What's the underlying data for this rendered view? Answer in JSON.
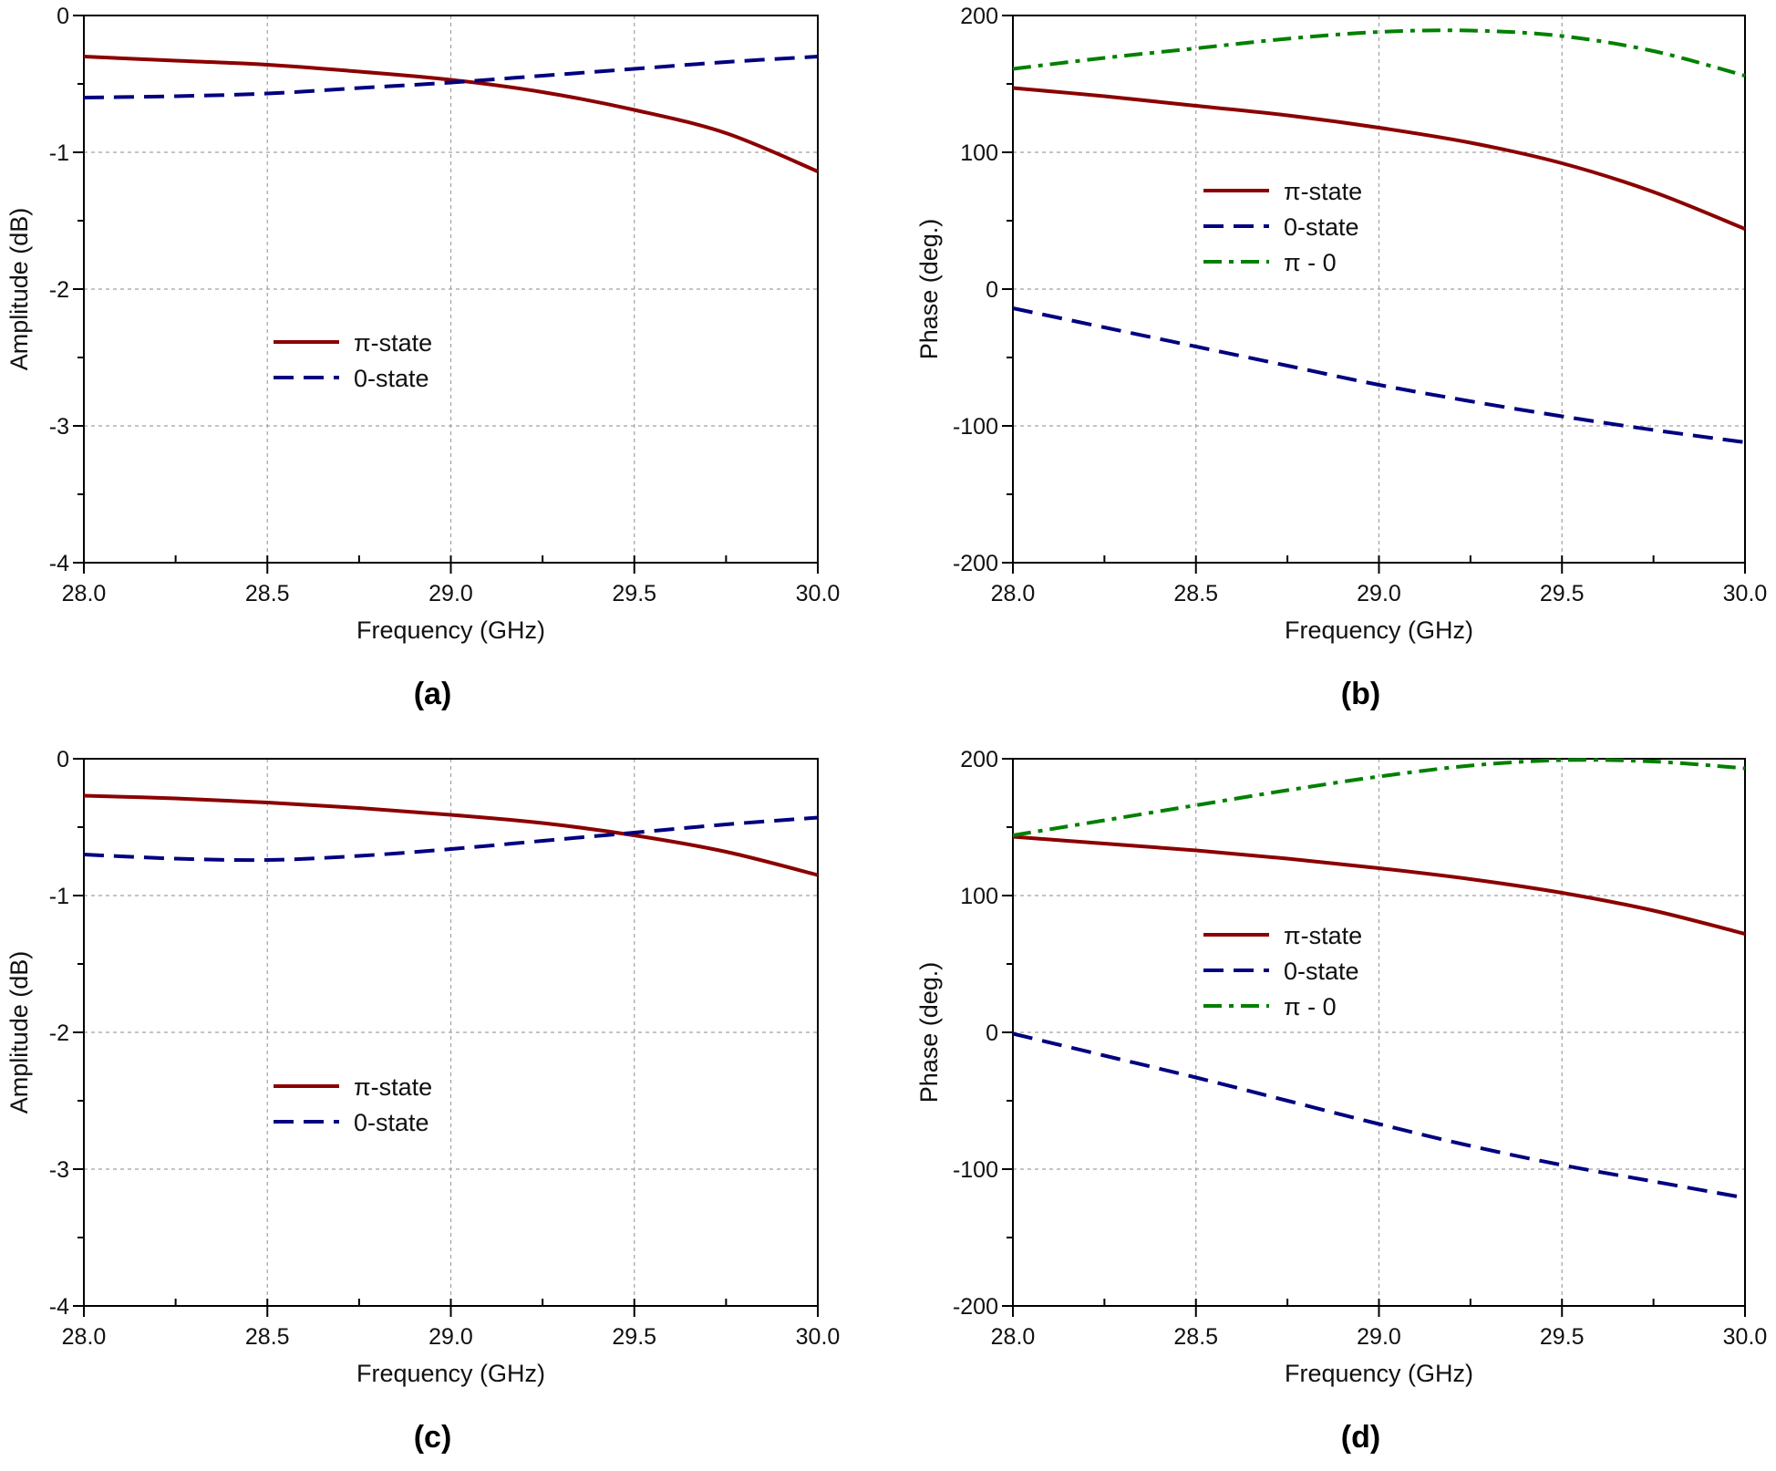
{
  "colors": {
    "pi_state": "#8b0000",
    "zero_state": "#000080",
    "pi_minus_zero": "#008000",
    "grid": "#a0a0a0"
  },
  "chart_data": [
    {
      "type": "line",
      "title": "(a)",
      "xlabel": "Frequency (GHz)",
      "ylabel": "Amplitude (dB)",
      "xlim": [
        28.0,
        30.0
      ],
      "ylim": [
        -4,
        0
      ],
      "grid": true,
      "legend": "center-left",
      "xticks": [
        "28.0",
        "28.5",
        "29.0",
        "29.5",
        "30.0"
      ],
      "yticks": [
        "-4",
        "-3",
        "-2",
        "-1",
        "0"
      ],
      "x": [
        28.0,
        28.25,
        28.5,
        28.75,
        29.0,
        29.25,
        29.5,
        29.75,
        30.0
      ],
      "series": [
        {
          "name": "π-state",
          "style": "solid",
          "color": "#8b0000",
          "values": [
            -0.3,
            -0.33,
            -0.36,
            -0.41,
            -0.47,
            -0.56,
            -0.69,
            -0.86,
            -1.14
          ]
        },
        {
          "name": "0-state",
          "style": "dash",
          "color": "#000080",
          "values": [
            -0.6,
            -0.59,
            -0.57,
            -0.53,
            -0.49,
            -0.44,
            -0.39,
            -0.34,
            -0.3
          ]
        }
      ]
    },
    {
      "type": "line",
      "title": "(b)",
      "xlabel": "Frequency (GHz)",
      "ylabel": "Phase (deg.)",
      "xlim": [
        28.0,
        30.0
      ],
      "ylim": [
        -200,
        200
      ],
      "grid": true,
      "legend": "upper-left",
      "xticks": [
        "28.0",
        "28.5",
        "29.0",
        "29.5",
        "30.0"
      ],
      "yticks": [
        "-200",
        "-100",
        "0",
        "100",
        "200"
      ],
      "x": [
        28.0,
        28.25,
        28.5,
        28.75,
        29.0,
        29.25,
        29.5,
        29.75,
        30.0
      ],
      "series": [
        {
          "name": "π-state",
          "style": "solid",
          "color": "#8b0000",
          "values": [
            147,
            141,
            134,
            127,
            118,
            107,
            92,
            71,
            44
          ]
        },
        {
          "name": "0-state",
          "style": "dash",
          "color": "#000080",
          "values": [
            -14,
            -28,
            -42,
            -56,
            -70,
            -82,
            -93,
            -103,
            -112
          ]
        },
        {
          "name": "π - 0",
          "style": "dashdot",
          "color": "#008000",
          "values": [
            161,
            169,
            176,
            183,
            188,
            189,
            185,
            174,
            156
          ]
        }
      ]
    },
    {
      "type": "line",
      "title": "(c)",
      "xlabel": "Frequency (GHz)",
      "ylabel": "Amplitude (dB)",
      "xlim": [
        28.0,
        30.0
      ],
      "ylim": [
        -4,
        0
      ],
      "grid": true,
      "legend": "center-left",
      "xticks": [
        "28.0",
        "28.5",
        "29.0",
        "29.5",
        "30.0"
      ],
      "yticks": [
        "-4",
        "-3",
        "-2",
        "-1",
        "0"
      ],
      "x": [
        28.0,
        28.25,
        28.5,
        28.75,
        29.0,
        29.25,
        29.5,
        29.75,
        30.0
      ],
      "series": [
        {
          "name": "π-state",
          "style": "solid",
          "color": "#8b0000",
          "values": [
            -0.27,
            -0.29,
            -0.32,
            -0.36,
            -0.41,
            -0.47,
            -0.56,
            -0.68,
            -0.85
          ]
        },
        {
          "name": "0-state",
          "style": "dash",
          "color": "#000080",
          "values": [
            -0.7,
            -0.73,
            -0.74,
            -0.71,
            -0.66,
            -0.6,
            -0.54,
            -0.48,
            -0.43
          ]
        }
      ]
    },
    {
      "type": "line",
      "title": "(d)",
      "xlabel": "Frequency (GHz)",
      "ylabel": "Phase (deg.)",
      "xlim": [
        28.0,
        30.0
      ],
      "ylim": [
        -200,
        200
      ],
      "grid": true,
      "legend": "upper-left",
      "xticks": [
        "28.0",
        "28.5",
        "29.0",
        "29.5",
        "30.0"
      ],
      "yticks": [
        "-200",
        "-100",
        "0",
        "100",
        "200"
      ],
      "x": [
        28.0,
        28.25,
        28.5,
        28.75,
        29.0,
        29.25,
        29.5,
        29.75,
        30.0
      ],
      "series": [
        {
          "name": "π-state",
          "style": "solid",
          "color": "#8b0000",
          "values": [
            143,
            138,
            133,
            127,
            120,
            112,
            102,
            89,
            72
          ]
        },
        {
          "name": "0-state",
          "style": "dash",
          "color": "#000080",
          "values": [
            -1,
            -17,
            -33,
            -50,
            -67,
            -83,
            -97,
            -109,
            -121
          ]
        },
        {
          "name": "π - 0",
          "style": "dashdot",
          "color": "#008000",
          "values": [
            144,
            155,
            166,
            177,
            187,
            195,
            199,
            198,
            193
          ]
        }
      ]
    }
  ]
}
